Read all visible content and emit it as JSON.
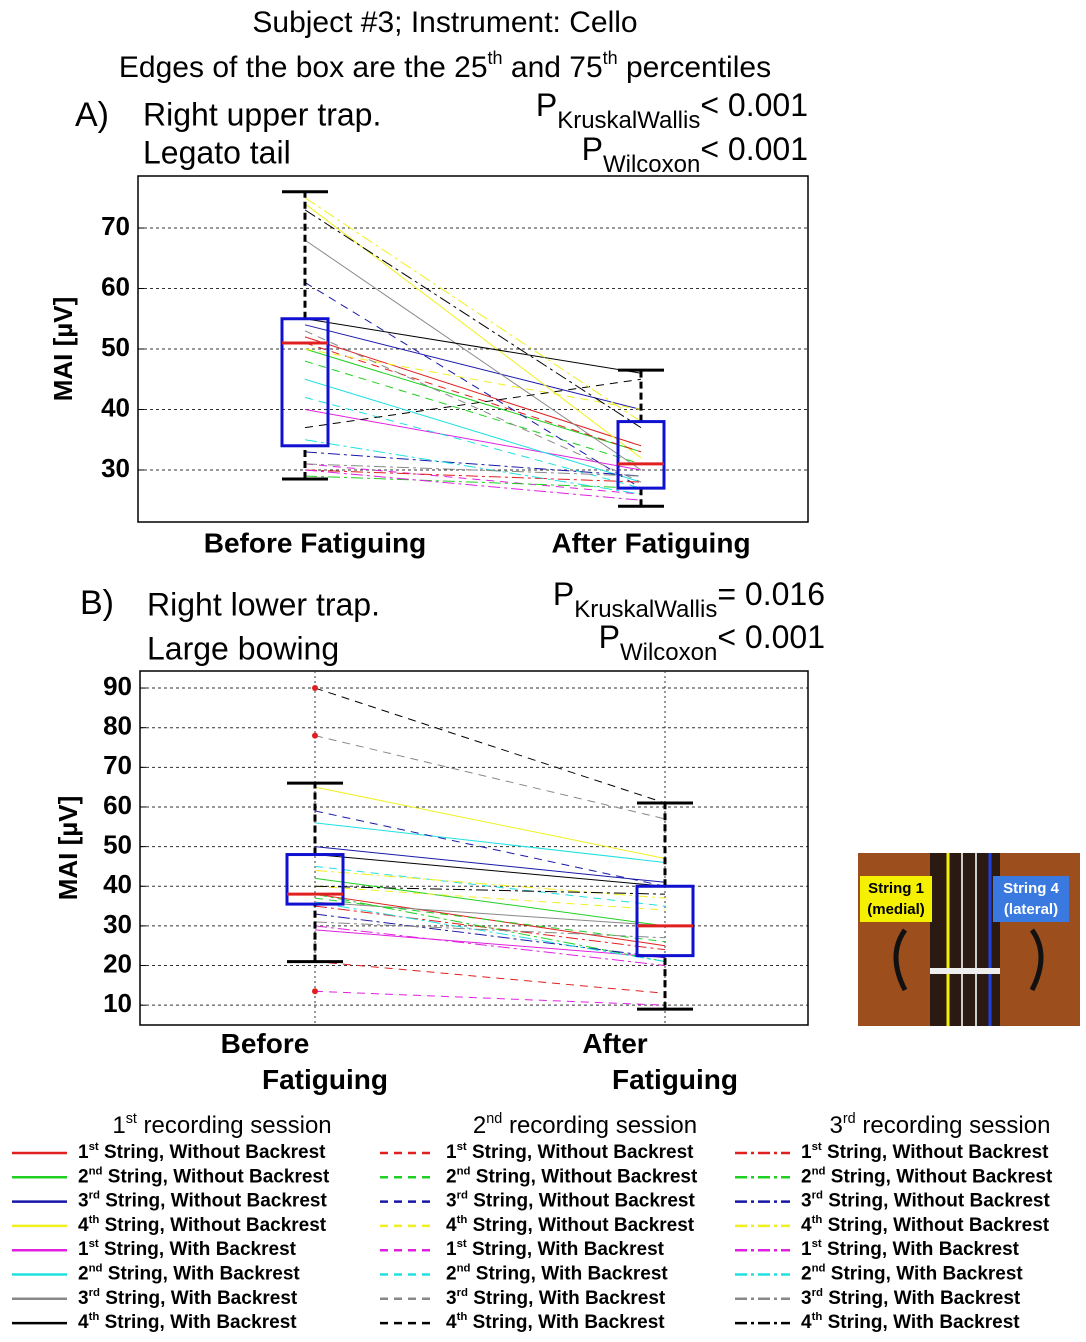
{
  "title": "Subject #3; Instrument: Cello",
  "subtitle_parts": [
    "Edges of the box are the 25",
    "th",
    " and 75",
    "th",
    " percentiles"
  ],
  "chart_data": [
    {
      "type": "paired-box",
      "panel": "A)",
      "muscle": "Right upper trap.",
      "task": "Legato tail",
      "stats": [
        {
          "p": "P",
          "sub": "KruskalWallis",
          "rel": "< 0.001"
        },
        {
          "p": "P",
          "sub": "Wilcoxon",
          "rel": "< 0.001"
        }
      ],
      "ylabel": "MAI [µV]",
      "categories": [
        "Before Fatiguing",
        "After Fatiguing"
      ],
      "wrap_categories": false,
      "ylim": [
        21.4,
        78.6
      ],
      "yticks": [
        30,
        40,
        50,
        60,
        70
      ],
      "grid": true,
      "xgrid": false,
      "boxes": [
        {
          "whislo": 28.5,
          "q1": 34,
          "med": 51,
          "q3": 55,
          "whishi": 76,
          "fliers": []
        },
        {
          "whislo": 24,
          "q1": 27,
          "med": 31,
          "q3": 38,
          "whishi": 46.5,
          "fliers": []
        }
      ],
      "series": [
        [
          52,
          34
        ],
        [
          50,
          33
        ],
        [
          54,
          40
        ],
        [
          74,
          32
        ],
        [
          40,
          30
        ],
        [
          45,
          28
        ],
        [
          68,
          30
        ],
        [
          55,
          46
        ],
        [
          51,
          33
        ],
        [
          48,
          31
        ],
        [
          61,
          27
        ],
        [
          50,
          40
        ],
        [
          31,
          26
        ],
        [
          42,
          27
        ],
        [
          53,
          28
        ],
        [
          37,
          45
        ],
        [
          30,
          28
        ],
        [
          29,
          27
        ],
        [
          33,
          29
        ],
        [
          75,
          38
        ],
        [
          30,
          25
        ],
        [
          35,
          26
        ],
        [
          31,
          29
        ],
        [
          73,
          37
        ]
      ]
    },
    {
      "type": "paired-box",
      "panel": "B)",
      "muscle": "Right lower trap.",
      "task": "Large bowing",
      "stats": [
        {
          "p": "P",
          "sub": "KruskalWallis",
          "rel": "= 0.016"
        },
        {
          "p": "P",
          "sub": "Wilcoxon",
          "rel": "< 0.001"
        }
      ],
      "ylabel": "MAI [µV]",
      "categories": [
        "Before Fatiguing",
        "After Fatiguing"
      ],
      "wrap_categories": true,
      "ylim": [
        5,
        94.3
      ],
      "yticks": [
        10,
        20,
        30,
        40,
        50,
        60,
        70,
        80,
        90
      ],
      "grid": true,
      "xgrid": true,
      "boxes": [
        {
          "whislo": 21,
          "q1": 35.5,
          "med": 38,
          "q3": 48,
          "whishi": 66,
          "fliers": [
            90,
            78,
            13.5
          ]
        },
        {
          "whislo": 9,
          "q1": 22.5,
          "med": 30,
          "q3": 40,
          "whishi": 61,
          "fliers": []
        }
      ],
      "series": [
        [
          38,
          25
        ],
        [
          42,
          30
        ],
        [
          50,
          41
        ],
        [
          65,
          47
        ],
        [
          29,
          22
        ],
        [
          56,
          46
        ],
        [
          36,
          30
        ],
        [
          48,
          40
        ],
        [
          21,
          13
        ],
        [
          37,
          26
        ],
        [
          59,
          40
        ],
        [
          40,
          34
        ],
        [
          13.5,
          10
        ],
        [
          45,
          35
        ],
        [
          78,
          57
        ],
        [
          90,
          61
        ],
        [
          35,
          24
        ],
        [
          38,
          21
        ],
        [
          33,
          22
        ],
        [
          44,
          37
        ],
        [
          30,
          20
        ],
        [
          36,
          21
        ],
        [
          31,
          27
        ],
        [
          40,
          38
        ]
      ]
    }
  ],
  "legend": {
    "sessions": [
      {
        "num": "1",
        "sup": "st",
        "text": " recording session"
      },
      {
        "num": "2",
        "sup": "nd",
        "text": " recording session"
      },
      {
        "num": "3",
        "sup": "rd",
        "text": " recording session"
      }
    ],
    "entries": [
      {
        "num": "1",
        "sup": "st",
        "text": " String, Without Backrest"
      },
      {
        "num": "2",
        "sup": "nd",
        "text": " String, Without Backrest"
      },
      {
        "num": "3",
        "sup": "rd",
        "text": " String, Without Backrest"
      },
      {
        "num": "4",
        "sup": "th",
        "text": " String, Without Backrest"
      },
      {
        "num": "1",
        "sup": "st",
        "text": " String, With Backrest"
      },
      {
        "num": "2",
        "sup": "nd",
        "text": " String, With Backrest"
      },
      {
        "num": "3",
        "sup": "rd",
        "text": " String, With Backrest"
      },
      {
        "num": "4",
        "sup": "th",
        "text": " String, With Backrest"
      }
    ],
    "colors": [
      "#e02020",
      "#20d020",
      "#1818a8",
      "#f0f020",
      "#e020e0",
      "#20e0e0",
      "#888888",
      "#000000"
    ],
    "dashes": [
      "none",
      "8,6",
      "12,4,3,4"
    ]
  },
  "inset": {
    "left": [
      "String 1",
      "(medial)"
    ],
    "right": [
      "String 4",
      "(lateral)"
    ]
  }
}
